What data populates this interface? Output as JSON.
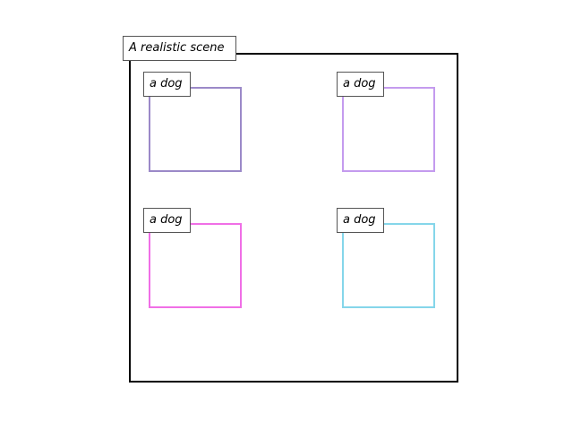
{
  "scene": {
    "title": "A realistic scene"
  },
  "objects": [
    {
      "label": "a dog",
      "color": "#9B89C8"
    },
    {
      "label": "a dog",
      "color": "#C49BEE"
    },
    {
      "label": "a dog",
      "color": "#F06FE6"
    },
    {
      "label": "a dog",
      "color": "#85D6EA"
    }
  ]
}
